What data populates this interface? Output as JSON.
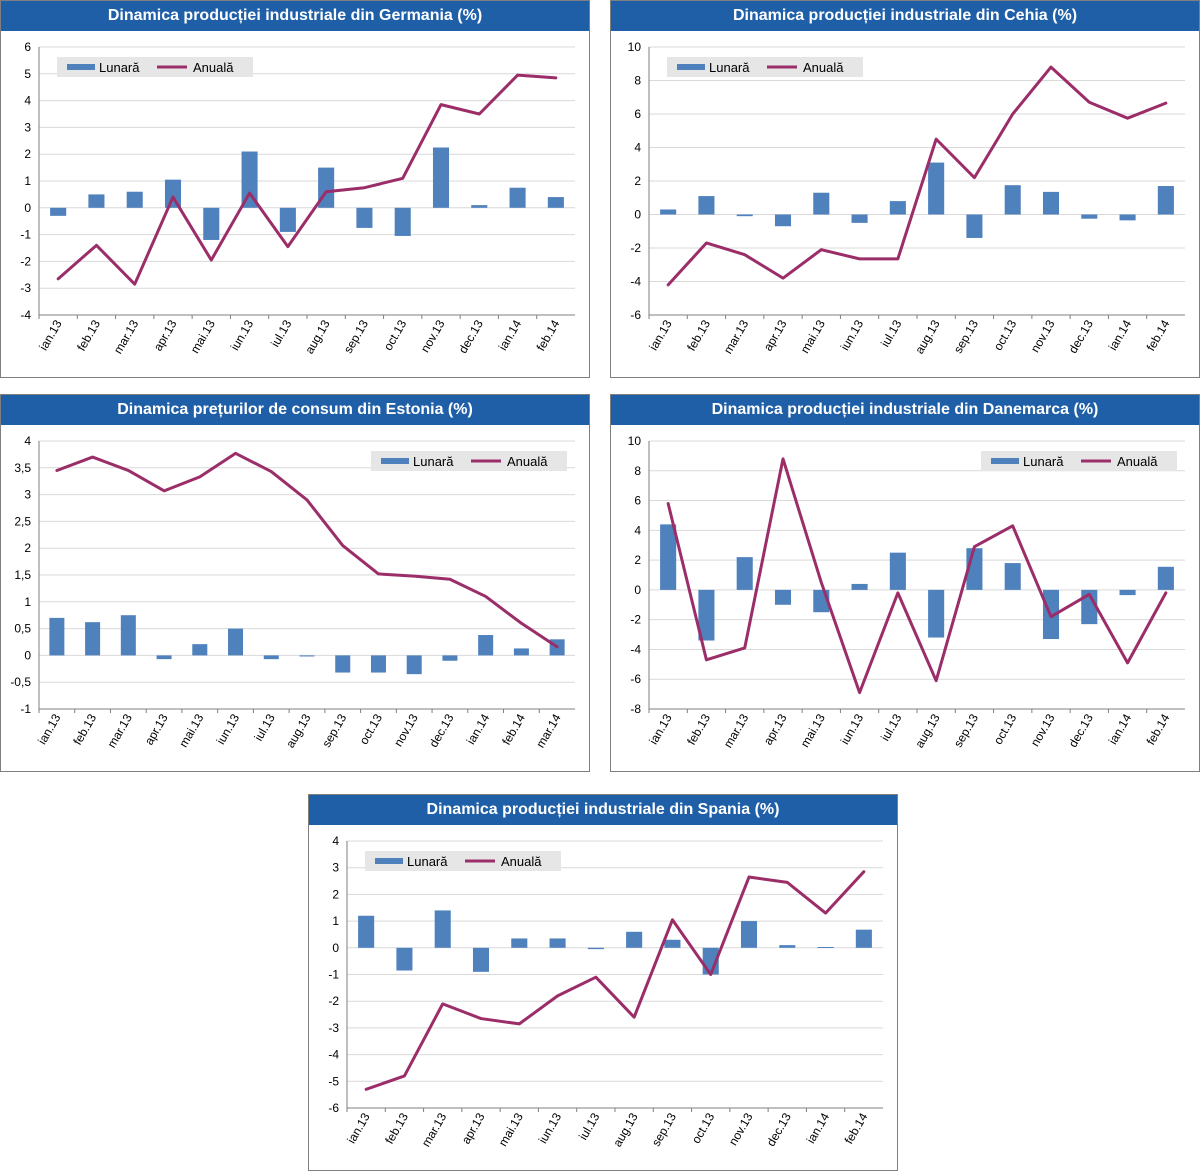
{
  "colors": {
    "monthly": "#4f81bd",
    "annual": "#9b2d69",
    "title_bg": "#1f5fa8",
    "axis": "#7f7f7f",
    "grid": "#d9d9d9",
    "legend_bg": "#e6e6e6"
  },
  "chart_data": [
    {
      "type": "bar+line",
      "title": "Dinamica producției industriale din Germania (%)",
      "categories": [
        "ian.13",
        "feb.13",
        "mar.13",
        "apr.13",
        "mai.13",
        "iun.13",
        "iul.13",
        "aug.13",
        "sep.13",
        "oct.13",
        "nov.13",
        "dec.13",
        "ian.14",
        "feb.14"
      ],
      "ylim": [
        -4,
        6
      ],
      "ystep": 1,
      "ytick_labels": [
        "-4",
        "-3",
        "-2",
        "-1",
        "0",
        "1",
        "2",
        "3",
        "4",
        "5",
        "6"
      ],
      "legend_position": "top-left",
      "series": [
        {
          "name": "Lunară",
          "kind": "bar",
          "values": [
            -0.3,
            0.5,
            0.6,
            1.05,
            -1.2,
            2.1,
            -0.9,
            1.5,
            -0.75,
            -1.05,
            2.25,
            0.1,
            0.75,
            0.4
          ]
        },
        {
          "name": "Anuală",
          "kind": "line",
          "values": [
            -2.65,
            -1.4,
            -2.85,
            0.4,
            -1.95,
            0.55,
            -1.45,
            0.6,
            0.75,
            1.1,
            3.85,
            3.5,
            4.95,
            4.85
          ]
        }
      ]
    },
    {
      "type": "bar+line",
      "title": "Dinamica producției industriale din Cehia (%)",
      "categories": [
        "ian.13",
        "feb.13",
        "mar.13",
        "apr.13",
        "mai.13",
        "iun.13",
        "iul.13",
        "aug.13",
        "sep.13",
        "oct.13",
        "nov.13",
        "dec.13",
        "ian.14",
        "feb.14"
      ],
      "ylim": [
        -6,
        10
      ],
      "ystep": 2,
      "ytick_labels": [
        "-6",
        "-4",
        "-2",
        "0",
        "2",
        "4",
        "6",
        "8",
        "10"
      ],
      "legend_position": "top-left",
      "series": [
        {
          "name": "Lunară",
          "kind": "bar",
          "values": [
            0.3,
            1.1,
            -0.1,
            -0.7,
            1.3,
            -0.5,
            0.8,
            3.1,
            -1.4,
            1.75,
            1.35,
            -0.25,
            -0.35,
            1.7
          ]
        },
        {
          "name": "Anuală",
          "kind": "line",
          "values": [
            -4.2,
            -1.7,
            -2.4,
            -3.8,
            -2.1,
            -2.65,
            -2.65,
            4.5,
            2.2,
            6.0,
            8.8,
            6.7,
            5.75,
            6.65
          ]
        }
      ]
    },
    {
      "type": "bar+line",
      "title": "Dinamica prețurilor de consum din Estonia (%)",
      "categories": [
        "ian.13",
        "feb.13",
        "mar.13",
        "apr.13",
        "mai.13",
        "iun.13",
        "iul.13",
        "aug.13",
        "sep.13",
        "oct.13",
        "nov.13",
        "dec.13",
        "ian.14",
        "feb.14",
        "mar.14"
      ],
      "ylim": [
        -1,
        4
      ],
      "ystep": 0.5,
      "ytick_labels": [
        "-1",
        "-0,5",
        "0",
        "0,5",
        "1",
        "1,5",
        "2",
        "2,5",
        "3",
        "3,5",
        "4"
      ],
      "legend_position": "top-right",
      "series": [
        {
          "name": "Lunară",
          "kind": "bar",
          "values": [
            0.7,
            0.62,
            0.75,
            -0.07,
            0.21,
            0.5,
            -0.07,
            -0.02,
            -0.32,
            -0.32,
            -0.35,
            -0.1,
            0.38,
            0.13,
            0.3
          ]
        },
        {
          "name": "Anuală",
          "kind": "line",
          "values": [
            3.45,
            3.7,
            3.45,
            3.07,
            3.33,
            3.77,
            3.43,
            2.9,
            2.05,
            1.52,
            1.48,
            1.42,
            1.1,
            0.6,
            0.16
          ]
        }
      ]
    },
    {
      "type": "bar+line",
      "title": "Dinamica producției industriale din Danemarca (%)",
      "categories": [
        "ian.13",
        "feb.13",
        "mar.13",
        "apr.13",
        "mai.13",
        "iun.13",
        "iul.13",
        "aug.13",
        "sep.13",
        "oct.13",
        "nov.13",
        "dec.13",
        "ian.14",
        "feb.14"
      ],
      "ylim": [
        -8,
        10
      ],
      "ystep": 2,
      "ytick_labels": [
        "-8",
        "-6",
        "-4",
        "-2",
        "0",
        "2",
        "4",
        "6",
        "8",
        "10"
      ],
      "legend_position": "top-right",
      "series": [
        {
          "name": "Lunară",
          "kind": "bar",
          "values": [
            4.4,
            -3.4,
            2.2,
            -1.0,
            -1.5,
            0.4,
            2.5,
            -3.2,
            2.8,
            1.8,
            -3.3,
            -2.3,
            -0.35,
            1.55
          ]
        },
        {
          "name": "Anuală",
          "kind": "line",
          "values": [
            5.8,
            -4.7,
            -3.9,
            8.8,
            0.5,
            -6.9,
            -0.2,
            -6.1,
            2.9,
            4.3,
            -1.8,
            -0.3,
            -4.9,
            -0.2
          ]
        }
      ]
    },
    {
      "type": "bar+line",
      "title": "Dinamica producției industriale din Spania (%)",
      "categories": [
        "ian.13",
        "feb.13",
        "mar.13",
        "apr.13",
        "mai.13",
        "iun.13",
        "iul.13",
        "aug.13",
        "sep.13",
        "oct.13",
        "nov.13",
        "dec.13",
        "ian.14",
        "feb.14"
      ],
      "ylim": [
        -6,
        4
      ],
      "ystep": 1,
      "ytick_labels": [
        "-6",
        "-5",
        "-4",
        "-3",
        "-2",
        "-1",
        "0",
        "1",
        "2",
        "3",
        "4"
      ],
      "legend_position": "top-left",
      "series": [
        {
          "name": "Lunară",
          "kind": "bar",
          "values": [
            1.2,
            -0.85,
            1.4,
            -0.9,
            0.35,
            0.35,
            -0.05,
            0.6,
            0.3,
            -1.0,
            1.0,
            0.1,
            0.03,
            0.68
          ]
        },
        {
          "name": "Anuală",
          "kind": "line",
          "values": [
            -5.3,
            -4.8,
            -2.1,
            -2.65,
            -2.85,
            -1.8,
            -1.1,
            -2.6,
            1.05,
            -1.0,
            2.65,
            2.45,
            1.3,
            2.85
          ]
        }
      ]
    }
  ]
}
